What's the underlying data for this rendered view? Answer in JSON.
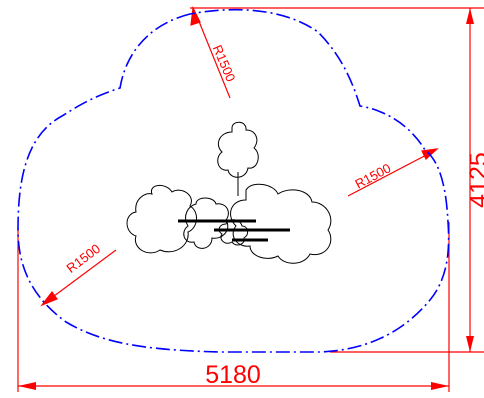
{
  "drawing": {
    "background_color": "#ffffff",
    "dimension_color": "#ff0000",
    "outline_color": "#0000ff",
    "symbol_color": "#000000",
    "outline_linetype": "dash-dot",
    "width_label": "5180",
    "height_label": "4125",
    "radius_labels": {
      "top": "R1500",
      "right": "R1500",
      "left": "R1500"
    }
  }
}
